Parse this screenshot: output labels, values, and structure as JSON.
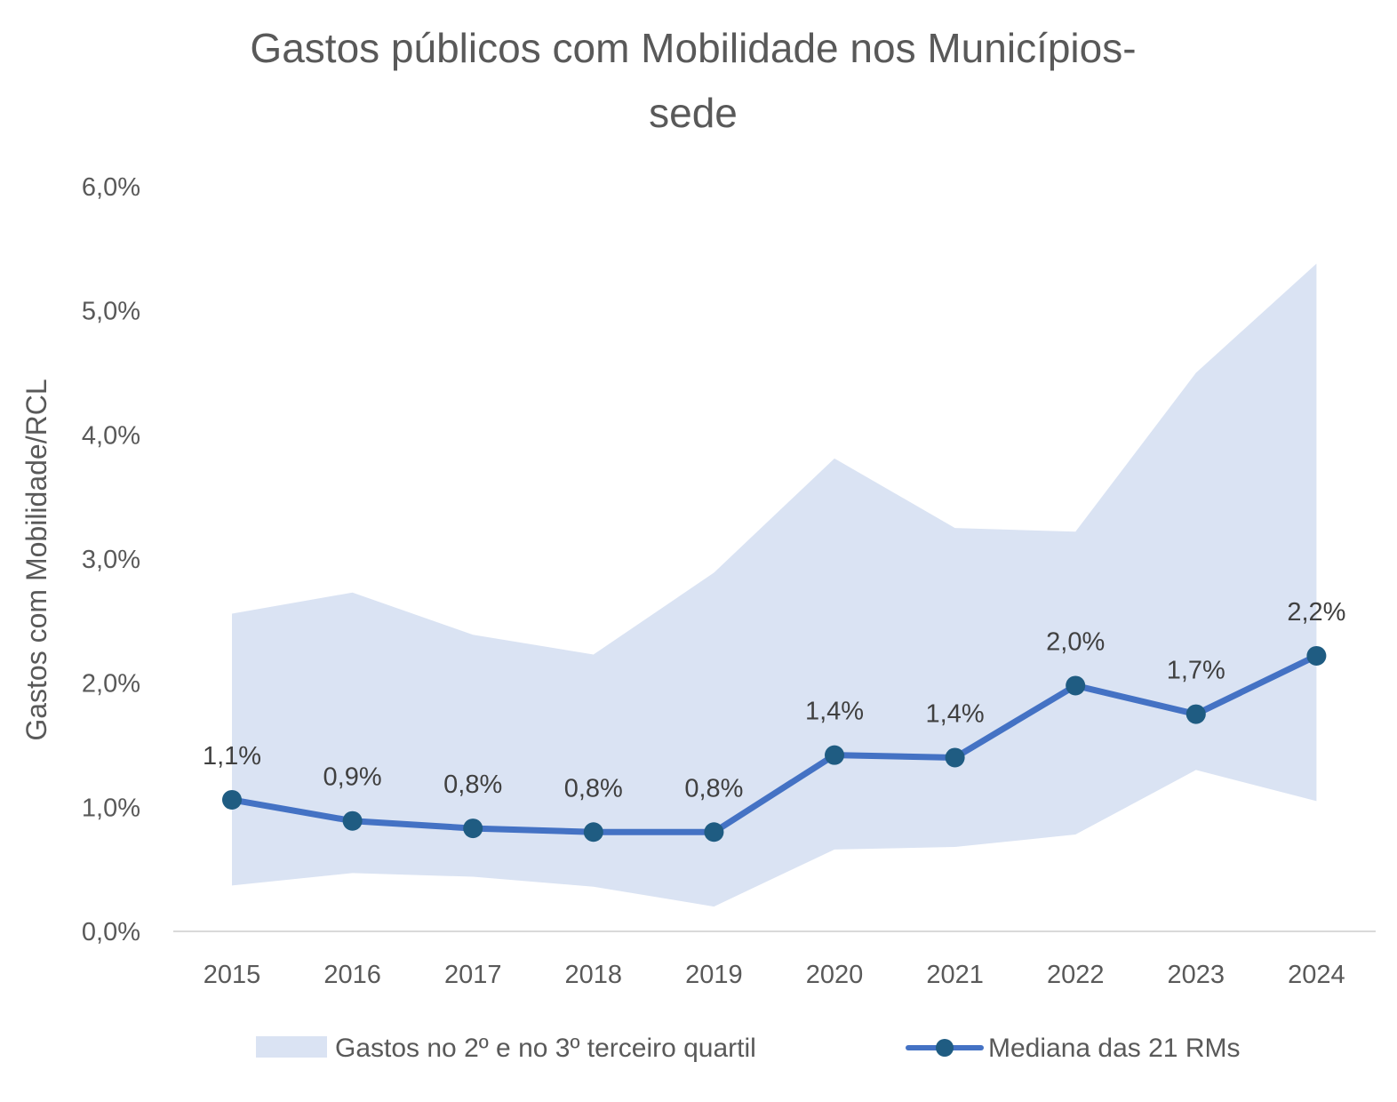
{
  "chart_data": {
    "type": "line",
    "title_lines": [
      "Gastos públicos com Mobilidade nos Municípios-",
      "sede"
    ],
    "ylabel": "Gastos com Mobilidade/RCL",
    "xlabel": "",
    "ylim": [
      0,
      6
    ],
    "y_ticks": [
      {
        "value": 0,
        "label": "0,0%"
      },
      {
        "value": 1,
        "label": "1,0%"
      },
      {
        "value": 2,
        "label": "2,0%"
      },
      {
        "value": 3,
        "label": "3,0%"
      },
      {
        "value": 4,
        "label": "4,0%"
      },
      {
        "value": 5,
        "label": "5,0%"
      },
      {
        "value": 6,
        "label": "6,0%"
      }
    ],
    "categories": [
      "2015",
      "2016",
      "2017",
      "2018",
      "2019",
      "2020",
      "2021",
      "2022",
      "2023",
      "2024"
    ],
    "grid": false,
    "legend_position": "bottom",
    "series": [
      {
        "name": "Gastos no 2º e no 3º terceiro quartil",
        "kind": "band",
        "color": "#dae3f3",
        "lower": [
          0.37,
          0.47,
          0.44,
          0.36,
          0.2,
          0.66,
          0.68,
          0.78,
          1.3,
          1.05
        ],
        "upper": [
          2.56,
          2.73,
          2.39,
          2.23,
          2.89,
          3.81,
          3.25,
          3.22,
          4.5,
          5.38
        ]
      },
      {
        "name": "Mediana das 21 RMs",
        "kind": "line",
        "color": "#4472c4",
        "marker_color": "#1f5c82",
        "values": [
          1.06,
          0.89,
          0.83,
          0.8,
          0.8,
          1.42,
          1.4,
          1.98,
          1.75,
          2.22
        ],
        "data_labels": [
          "1,1%",
          "0,9%",
          "0,8%",
          "0,8%",
          "0,8%",
          "1,4%",
          "1,4%",
          "2,0%",
          "1,7%",
          "2,2%"
        ]
      }
    ]
  }
}
